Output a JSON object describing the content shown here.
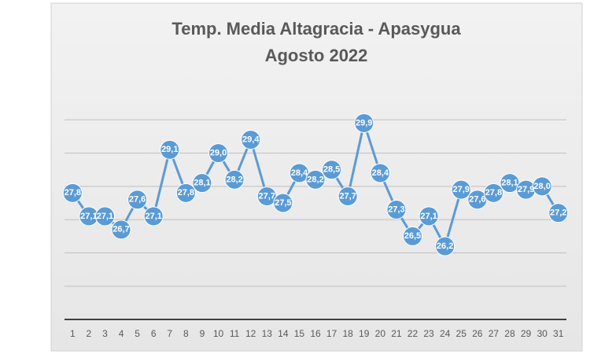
{
  "chart_data": {
    "type": "line",
    "title_lines": [
      "Temp. Media Altagracia - Apasygua",
      "Agosto 2022"
    ],
    "categories": [
      "1",
      "2",
      "3",
      "4",
      "5",
      "6",
      "7",
      "8",
      "9",
      "10",
      "11",
      "12",
      "13",
      "14",
      "15",
      "16",
      "17",
      "18",
      "19",
      "20",
      "21",
      "22",
      "23",
      "24",
      "25",
      "26",
      "27",
      "28",
      "29",
      "30",
      "31"
    ],
    "values": [
      27.8,
      27.1,
      27.1,
      26.7,
      27.6,
      27.1,
      29.1,
      27.8,
      28.1,
      29.0,
      28.2,
      29.4,
      27.7,
      27.5,
      28.4,
      28.2,
      28.5,
      27.7,
      29.9,
      28.4,
      27.3,
      26.5,
      27.1,
      26.2,
      27.9,
      27.6,
      27.8,
      28.1,
      27.9,
      28.0,
      27.2
    ],
    "value_labels": [
      "27,8",
      "27,1",
      "27,1",
      "26,7",
      "27,6",
      "27,1",
      "29,1",
      "27,8",
      "28,1",
      "29,0",
      "28,2",
      "29,4",
      "27,7",
      "27,5",
      "28,4",
      "28,2",
      "28,5",
      "27,7",
      "29,9",
      "28,4",
      "27,3",
      "26,5",
      "27,1",
      "26,2",
      "27,9",
      "27,6",
      "27,8",
      "28,1",
      "27,9",
      "28,0",
      "27,2"
    ],
    "color": "#5b9bd5",
    "ylim": [
      24,
      31
    ],
    "yticks": [
      24,
      25,
      26,
      27,
      28,
      29,
      30
    ],
    "grid": true
  }
}
